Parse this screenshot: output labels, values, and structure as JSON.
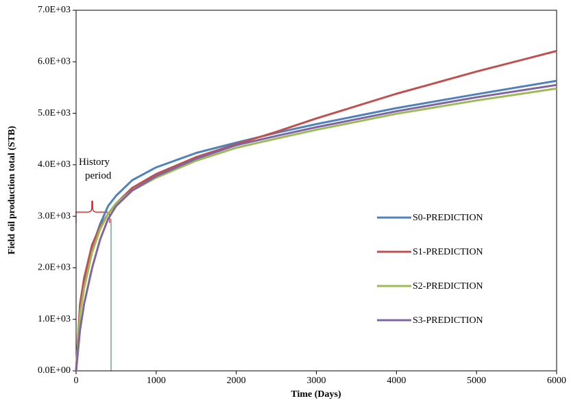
{
  "chart_data": {
    "type": "line",
    "x_label": "Time (Days)",
    "y_label": "Field oil production total (STB)",
    "annotation": "History period",
    "x": [
      0,
      50,
      100,
      200,
      300,
      400,
      500,
      700,
      1000,
      1500,
      2000,
      2500,
      3000,
      4000,
      5000,
      6000
    ],
    "series": [
      {
        "name": "S0-PREDICTION",
        "color": "#4f81bd",
        "values": [
          0,
          1200,
          1700,
          2400,
          2850,
          3200,
          3400,
          3700,
          3950,
          4230,
          4430,
          4620,
          4790,
          5100,
          5370,
          5630
        ]
      },
      {
        "name": "S1-PREDICTION",
        "color": "#c0504d",
        "values": [
          0,
          1300,
          1800,
          2450,
          2800,
          3050,
          3250,
          3550,
          3820,
          4150,
          4400,
          4640,
          4900,
          5380,
          5810,
          6210
        ]
      },
      {
        "name": "S2-PREDICTION",
        "color": "#9bbb59",
        "values": [
          0,
          1100,
          1600,
          2300,
          2750,
          3050,
          3250,
          3500,
          3750,
          4080,
          4330,
          4510,
          4680,
          4990,
          5250,
          5480
        ]
      },
      {
        "name": "S3-PREDICTION",
        "color": "#8064a2",
        "values": [
          0,
          800,
          1300,
          2000,
          2550,
          2950,
          3200,
          3500,
          3780,
          4120,
          4380,
          4560,
          4730,
          5040,
          5310,
          5550
        ]
      }
    ],
    "xlim": [
      0,
      6000
    ],
    "xticks": [
      0,
      1000,
      2000,
      3000,
      4000,
      5000,
      6000
    ],
    "ylim": [
      0,
      7000
    ],
    "yticks": [
      {
        "value": 0,
        "label": "0.0E+00"
      },
      {
        "value": 1000,
        "label": "1.0E+03"
      },
      {
        "value": 2000,
        "label": "2.0E+03"
      },
      {
        "value": 3000,
        "label": "3.0E+03"
      },
      {
        "value": 4000,
        "label": "4.0E+03"
      },
      {
        "value": 5000,
        "label": "5.0E+03"
      },
      {
        "value": 6000,
        "label": "6.0E+03"
      },
      {
        "value": 7000,
        "label": "7.0E+03"
      }
    ],
    "grid": false,
    "legend": "right"
  }
}
